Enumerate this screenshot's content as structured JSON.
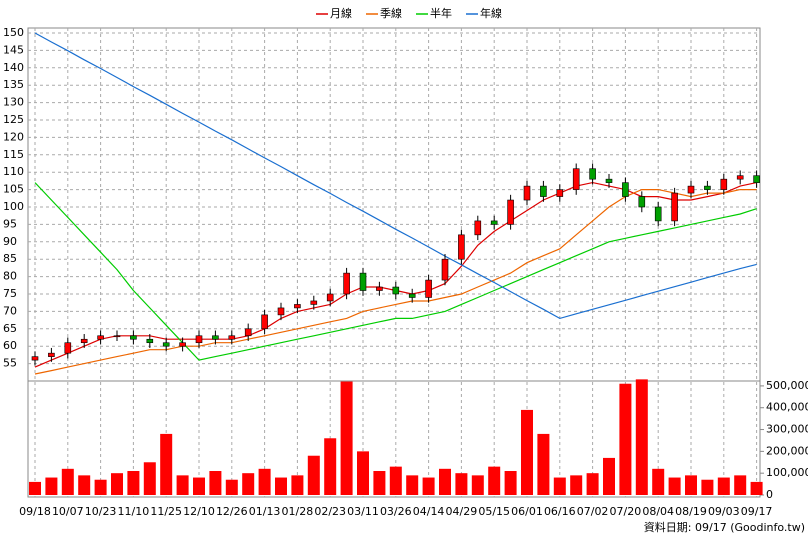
{
  "chart_data": {
    "type": "candlestick",
    "categories": [
      "09/18",
      null,
      "10/07",
      null,
      "10/23",
      null,
      "11/10",
      null,
      "11/25",
      null,
      "12/10",
      null,
      "12/26",
      null,
      "01/13",
      null,
      "01/28",
      null,
      "02/23",
      null,
      "03/11",
      null,
      "03/26",
      null,
      "04/14",
      null,
      "04/29",
      null,
      "05/15",
      null,
      "06/01",
      null,
      "06/16",
      null,
      "07/02",
      null,
      "07/20",
      null,
      "08/04",
      null,
      "08/19",
      null,
      "09/03",
      null,
      "09/17"
    ],
    "open": [
      56,
      57,
      58,
      61,
      62,
      63,
      63,
      62,
      61,
      60,
      61,
      63,
      62,
      63,
      65,
      69,
      71,
      72,
      73,
      75,
      81,
      76,
      77,
      75,
      74,
      79,
      85,
      92,
      96,
      95,
      102,
      106,
      103,
      105,
      111,
      108,
      107,
      103,
      100,
      96,
      104,
      106,
      105,
      108,
      109
    ],
    "high": [
      58.5,
      59.5,
      62.5,
      63.5,
      64.5,
      64.5,
      64.5,
      63.5,
      62.5,
      62.5,
      64.5,
      64.5,
      64.5,
      66.5,
      70.5,
      72.5,
      73.5,
      74.5,
      76.5,
      82.5,
      82.5,
      78.5,
      78.5,
      76.5,
      80.5,
      86.5,
      93.5,
      97.5,
      97.5,
      103.5,
      107.5,
      107.5,
      106.5,
      112.5,
      112.5,
      109.5,
      108.5,
      104.5,
      101.5,
      105.5,
      107.5,
      107.5,
      109.5,
      110.5,
      110.5
    ],
    "low": [
      54.5,
      55.5,
      56.5,
      59.5,
      60.5,
      61.5,
      60.5,
      59.5,
      58.5,
      58.5,
      59.5,
      60.5,
      60.5,
      61.5,
      63.5,
      67.5,
      69.5,
      70.5,
      71.5,
      73.5,
      74.5,
      74.5,
      73.5,
      72.5,
      72.5,
      77.5,
      83.5,
      90.5,
      93.5,
      93.5,
      100.5,
      101.5,
      101.5,
      103.5,
      106.5,
      105.5,
      101.5,
      98.5,
      94.5,
      94.5,
      102.5,
      103.5,
      103.5,
      106.5,
      105.5
    ],
    "close": [
      57,
      58,
      61,
      62,
      63,
      63,
      62,
      61,
      60,
      61,
      63,
      62,
      63,
      65,
      69,
      71,
      72,
      73,
      75,
      81,
      76,
      77,
      75,
      74,
      79,
      85,
      92,
      96,
      95,
      102,
      106,
      103,
      105,
      111,
      108,
      107,
      103,
      100,
      96,
      104,
      106,
      105,
      108,
      109,
      107
    ],
    "up_color": "#ff0000",
    "down_color": "#00a000",
    "series": [
      {
        "name": "月線",
        "color": "#dd0000",
        "values": [
          54,
          56,
          58,
          60,
          62,
          63,
          63,
          63,
          62,
          62,
          62,
          62,
          62,
          63,
          65,
          68,
          70,
          71,
          72,
          75,
          77,
          77,
          76,
          75,
          76,
          78,
          83,
          89,
          93,
          96,
          99,
          102,
          104,
          106,
          107,
          106,
          105,
          103,
          103,
          102,
          102,
          103,
          104,
          106,
          107
        ]
      },
      {
        "name": "季線",
        "color": "#ee6600",
        "values": [
          52,
          53,
          54,
          55,
          56,
          57,
          58,
          59,
          59,
          60,
          60,
          61,
          61,
          62,
          63,
          64,
          65,
          66,
          67,
          68,
          70,
          71,
          72,
          73,
          73,
          74,
          75,
          77,
          79,
          81,
          84,
          86,
          88,
          92,
          96,
          100,
          103,
          105,
          105,
          104,
          103,
          104,
          104,
          105,
          105
        ]
      },
      {
        "name": "半年",
        "color": "#00cc00",
        "values": [
          107,
          102,
          97,
          92,
          87,
          82,
          76,
          71,
          66,
          61,
          56,
          57,
          58,
          59,
          60,
          61,
          62,
          63,
          64,
          65,
          66,
          67,
          68,
          68,
          69,
          70,
          72,
          74,
          76,
          78,
          80,
          82,
          84,
          86,
          88,
          90,
          91,
          92,
          93,
          94,
          95,
          96,
          97,
          98,
          99.5
        ]
      },
      {
        "name": "年線",
        "color": "#1a6fd0",
        "values": [
          150,
          147.4,
          144.9,
          142.3,
          139.8,
          137.2,
          134.6,
          132.1,
          129.5,
          126.9,
          124.4,
          121.8,
          119.3,
          116.7,
          114.1,
          111.6,
          109,
          106.4,
          103.9,
          101.3,
          98.8,
          96.2,
          93.6,
          91.1,
          88.5,
          85.9,
          83.4,
          80.8,
          78.3,
          75.7,
          73.1,
          70.6,
          68,
          69.3,
          70.6,
          71.9,
          73.2,
          74.5,
          75.8,
          77.1,
          78.4,
          79.7,
          81,
          82.3,
          83.5
        ]
      }
    ],
    "volume": {
      "color": "#ff0000",
      "axis": "y2",
      "values": [
        60000,
        80000,
        120000,
        90000,
        70000,
        100000,
        110000,
        150000,
        280000,
        90000,
        80000,
        110000,
        70000,
        100000,
        120000,
        80000,
        90000,
        180000,
        260000,
        520000,
        200000,
        110000,
        130000,
        90000,
        80000,
        120000,
        100000,
        90000,
        130000,
        110000,
        390000,
        280000,
        80000,
        90000,
        100000,
        170000,
        510000,
        530000,
        120000,
        80000,
        90000,
        70000,
        80000,
        90000,
        60000
      ]
    },
    "ylim": [
      50,
      150
    ],
    "yticks": [
      55,
      60,
      65,
      70,
      75,
      80,
      85,
      90,
      95,
      100,
      105,
      110,
      115,
      120,
      125,
      130,
      135,
      140,
      145,
      150
    ],
    "y2lim": [
      0,
      550000
    ],
    "y2ticks": [
      0,
      {
        "value": 100000,
        "label": "100,000"
      },
      {
        "value": 200000,
        "label": "200,000"
      },
      {
        "value": 300000,
        "label": "300,000"
      },
      {
        "value": 400000,
        "label": "400,000"
      },
      {
        "value": 500000,
        "label": "500,000"
      }
    ],
    "grid": true,
    "source": "資料日期: 09/17 (Goodinfo.tw)"
  }
}
